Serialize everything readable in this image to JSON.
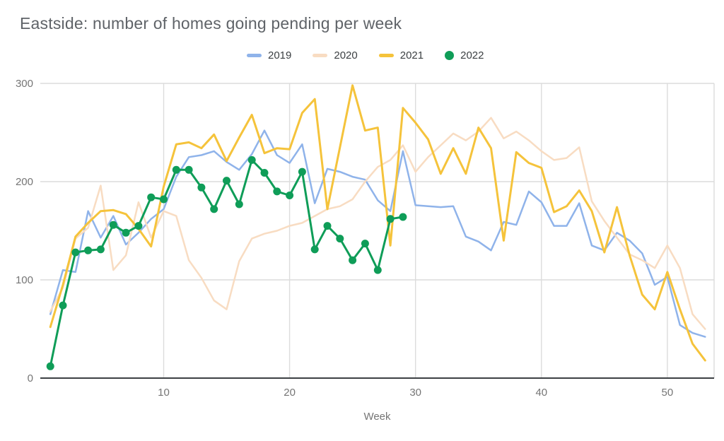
{
  "title": "Eastside: number of homes going pending per week",
  "legend": {
    "items": [
      {
        "label": "2019",
        "color": "#8fb3ea",
        "marker": "dash"
      },
      {
        "label": "2020",
        "color": "#f8dcc2",
        "marker": "dash"
      },
      {
        "label": "2021",
        "color": "#f5c33b",
        "marker": "dash"
      },
      {
        "label": "2022",
        "color": "#0f9d58",
        "marker": "circle"
      }
    ]
  },
  "axes": {
    "x_label": "Week",
    "x_ticks": [
      10,
      20,
      30,
      40,
      50
    ],
    "y_ticks": [
      0,
      100,
      200,
      300
    ]
  },
  "chart_data": {
    "type": "line",
    "title": "Eastside: number of homes going pending per week",
    "xlabel": "Week",
    "ylabel": "",
    "xlim": [
      1,
      53
    ],
    "ylim": [
      0,
      300
    ],
    "grid": true,
    "legend_position": "top",
    "x": [
      1,
      2,
      3,
      4,
      5,
      6,
      7,
      8,
      9,
      10,
      11,
      12,
      13,
      14,
      15,
      16,
      17,
      18,
      19,
      20,
      21,
      22,
      23,
      24,
      25,
      26,
      27,
      28,
      29,
      30,
      31,
      32,
      33,
      34,
      35,
      36,
      37,
      38,
      39,
      40,
      41,
      42,
      43,
      44,
      45,
      46,
      47,
      48,
      49,
      50,
      51,
      52,
      53
    ],
    "series": [
      {
        "name": "2019",
        "color": "#8fb3ea",
        "line_width": 2.5,
        "marker": false,
        "values": [
          65,
          110,
          108,
          170,
          143,
          165,
          136,
          148,
          162,
          172,
          205,
          225,
          227,
          231,
          220,
          212,
          228,
          252,
          227,
          219,
          238,
          178,
          213,
          210,
          205,
          202,
          181,
          170,
          231,
          176,
          175,
          174,
          175,
          144,
          139,
          130,
          159,
          156,
          190,
          179,
          155,
          155,
          178,
          135,
          130,
          148,
          140,
          127,
          95,
          103,
          54,
          46,
          42
        ]
      },
      {
        "name": "2020",
        "color": "#f8dcc2",
        "line_width": 2.5,
        "marker": false,
        "values": [
          68,
          92,
          142,
          153,
          196,
          110,
          125,
          179,
          143,
          170,
          165,
          120,
          102,
          79,
          70,
          119,
          142,
          147,
          150,
          155,
          158,
          165,
          172,
          175,
          182,
          200,
          215,
          222,
          237,
          210,
          225,
          237,
          249,
          242,
          251,
          265,
          244,
          251,
          242,
          231,
          222,
          224,
          235,
          180,
          160,
          143,
          126,
          120,
          112,
          135,
          112,
          65,
          50
        ]
      },
      {
        "name": "2021",
        "color": "#f5c33b",
        "line_width": 3,
        "marker": false,
        "values": [
          52,
          95,
          144,
          158,
          170,
          171,
          167,
          152,
          134,
          195,
          238,
          240,
          234,
          248,
          221,
          245,
          268,
          229,
          234,
          233,
          270,
          284,
          172,
          235,
          298,
          252,
          255,
          135,
          275,
          260,
          243,
          208,
          234,
          208,
          255,
          234,
          140,
          230,
          219,
          214,
          169,
          175,
          191,
          170,
          128,
          174,
          125,
          85,
          70,
          108,
          70,
          35,
          18
        ]
      },
      {
        "name": "2022",
        "color": "#0f9d58",
        "line_width": 3,
        "marker": true,
        "marker_radius": 5.5,
        "values": [
          12,
          74,
          128,
          130,
          131,
          156,
          148,
          155,
          184,
          182,
          212,
          212,
          194,
          172,
          201,
          177,
          222,
          209,
          190,
          186,
          210,
          131,
          155,
          142,
          120,
          137,
          110,
          162,
          164
        ]
      }
    ]
  }
}
